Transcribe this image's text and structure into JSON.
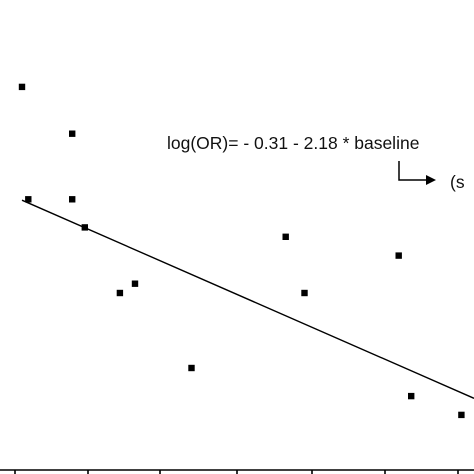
{
  "chart_data": {
    "type": "scatter",
    "title": "",
    "xlabel": "",
    "ylabel": "",
    "x_tick_labels": [],
    "y_tick_labels": [],
    "points": [
      {
        "x": 0.05,
        "y": 0.9
      },
      {
        "x": 0.45,
        "y": 0.85
      },
      {
        "x": 0.1,
        "y": 0.78
      },
      {
        "x": 0.45,
        "y": 0.78
      },
      {
        "x": 0.55,
        "y": 0.75
      },
      {
        "x": 2.15,
        "y": 0.74
      },
      {
        "x": 3.05,
        "y": 0.72
      },
      {
        "x": 0.95,
        "y": 0.69
      },
      {
        "x": 0.83,
        "y": 0.68
      },
      {
        "x": 2.3,
        "y": 0.68
      },
      {
        "x": 1.4,
        "y": 0.6
      },
      {
        "x": 3.15,
        "y": 0.57
      },
      {
        "x": 3.55,
        "y": 0.55
      }
    ],
    "regression_line": {
      "intercept": 0.782,
      "slope": -0.0587,
      "x_start": 0.05,
      "x_end": 3.65
    },
    "annotations": {
      "equation": "log(OR)= - 0.31 - 2.18 * baseline",
      "arrow_label": "(s"
    },
    "xlim": [
      0,
      3.65
    ],
    "ylim": [
      0.52,
      0.95
    ],
    "grid": false,
    "legend": "none",
    "colors": {
      "points": "#000000",
      "line": "#000000"
    }
  }
}
